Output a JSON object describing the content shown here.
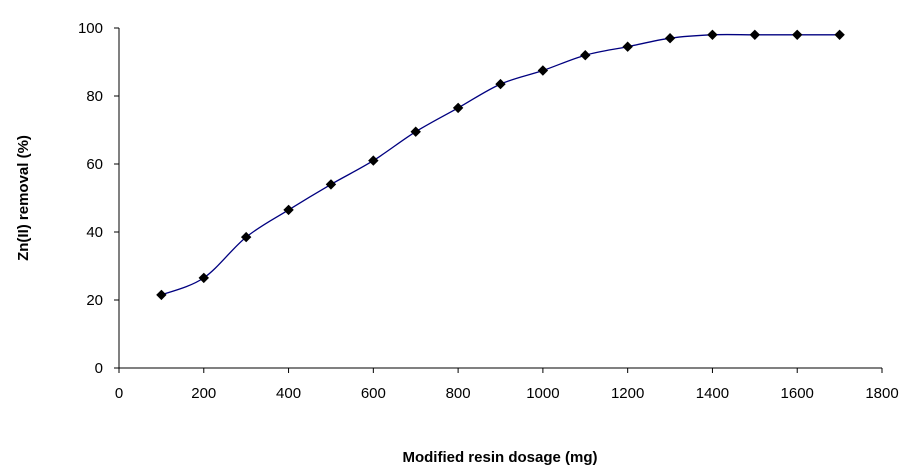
{
  "chart_data": {
    "type": "line",
    "title": "",
    "xlabel": "Modified resin dosage (mg)",
    "ylabel": "Zn(II) removal (%)",
    "xlim": [
      0,
      1800
    ],
    "ylim": [
      0,
      100
    ],
    "xticks": [
      0,
      200,
      400,
      600,
      800,
      1000,
      1200,
      1400,
      1600,
      1800
    ],
    "yticks": [
      0,
      20,
      40,
      60,
      80,
      100
    ],
    "grid": false,
    "legend": "none",
    "line_color": "#000080",
    "marker_color": "#000000",
    "marker": "diamond",
    "series": [
      {
        "x": [
          100,
          200,
          300,
          400,
          500,
          600,
          700,
          800,
          900,
          1000,
          1100,
          1200,
          1300,
          1400,
          1500,
          1600,
          1700
        ],
        "values": [
          21.5,
          26.5,
          38.5,
          46.5,
          54,
          61,
          69.5,
          76.5,
          83.5,
          87.5,
          92,
          94.5,
          97,
          98,
          98,
          98,
          98
        ]
      }
    ]
  }
}
